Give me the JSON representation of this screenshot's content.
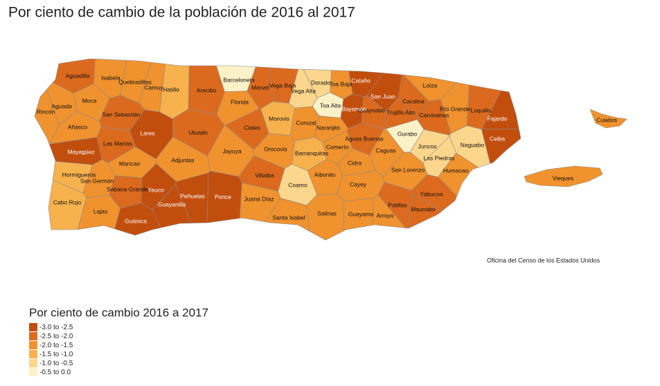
{
  "title": "Por ciento de cambio de la población de 2016 al 2017",
  "source": "Oficina del Censo de los Estados Unidos",
  "legend": {
    "title": "Por ciento de cambio 2016 a 2017",
    "items": [
      {
        "label": "-3.0 to -2.5",
        "color": "#c24e0e"
      },
      {
        "label": "-2.5 to -2.0",
        "color": "#dc6a1e"
      },
      {
        "label": "-2.0 to -1.5",
        "color": "#f0922e"
      },
      {
        "label": "-1.5 to -1.0",
        "color": "#f7b24e"
      },
      {
        "label": "-1.0 to -0.5",
        "color": "#fcd68c"
      },
      {
        "label": "-0.5 to 0.0",
        "color": "#fdf1c8"
      }
    ]
  },
  "municipalities": [
    {
      "name": "Aguadilla",
      "color": "#dc6a1e"
    },
    {
      "name": "Isabela",
      "color": "#f0922e"
    },
    {
      "name": "Quebradillas",
      "color": "#f0922e"
    },
    {
      "name": "Camuy",
      "color": "#f0922e"
    },
    {
      "name": "Hatillo",
      "color": "#f7b24e"
    },
    {
      "name": "Arecibo",
      "color": "#dc6a1e"
    },
    {
      "name": "Barceloneta",
      "color": "#fdf1c8"
    },
    {
      "name": "Manatí",
      "color": "#dc6a1e"
    },
    {
      "name": "Florida",
      "color": "#f0922e"
    },
    {
      "name": "Vega Baja",
      "color": "#dc6a1e"
    },
    {
      "name": "Vega Alta",
      "color": "#fcd68c"
    },
    {
      "name": "Dorado",
      "color": "#fcd68c"
    },
    {
      "name": "Toa Baja",
      "color": "#f0922e"
    },
    {
      "name": "Cataño",
      "color": "#c24e0e"
    },
    {
      "name": "San Juan",
      "color": "#c24e0e"
    },
    {
      "name": "Carolina",
      "color": "#dc6a1e"
    },
    {
      "name": "Loíza",
      "color": "#f0922e"
    },
    {
      "name": "Guaynabo",
      "color": "#dc6a1e"
    },
    {
      "name": "Bayamón",
      "color": "#c24e0e"
    },
    {
      "name": "Toa Alta",
      "color": "#fdf1c8"
    },
    {
      "name": "Trujillo Alto",
      "color": "#dc6a1e"
    },
    {
      "name": "Canóvanas",
      "color": "#dc6a1e"
    },
    {
      "name": "Río Grande",
      "color": "#f0922e"
    },
    {
      "name": "Luquillo",
      "color": "#dc6a1e"
    },
    {
      "name": "Fajardo",
      "color": "#c24e0e"
    },
    {
      "name": "Ceiba",
      "color": "#c24e0e"
    },
    {
      "name": "Culebra",
      "color": "#f0922e"
    },
    {
      "name": "Vieques",
      "color": "#f0922e"
    },
    {
      "name": "Rincón",
      "color": "#f0922e"
    },
    {
      "name": "Aguada",
      "color": "#f0922e"
    },
    {
      "name": "Moca",
      "color": "#f0922e"
    },
    {
      "name": "San Sebastián",
      "color": "#dc6a1e"
    },
    {
      "name": "Añasco",
      "color": "#f0922e"
    },
    {
      "name": "Lares",
      "color": "#c24e0e"
    },
    {
      "name": "Utuado",
      "color": "#dc6a1e"
    },
    {
      "name": "Ciales",
      "color": "#dc6a1e"
    },
    {
      "name": "Morovis",
      "color": "#f7b24e"
    },
    {
      "name": "Corozal",
      "color": "#f0922e"
    },
    {
      "name": "Naranjito",
      "color": "#f0922e"
    },
    {
      "name": "Mayagüez",
      "color": "#c24e0e"
    },
    {
      "name": "Las Marías",
      "color": "#dc6a1e"
    },
    {
      "name": "Maricao",
      "color": "#f0922e"
    },
    {
      "name": "Adjuntas",
      "color": "#f0922e"
    },
    {
      "name": "Jayuya",
      "color": "#f0922e"
    },
    {
      "name": "Orocovis",
      "color": "#f0922e"
    },
    {
      "name": "Barranquitas",
      "color": "#f7b24e"
    },
    {
      "name": "Comerío",
      "color": "#f0922e"
    },
    {
      "name": "Aguas Buenas",
      "color": "#dc6a1e"
    },
    {
      "name": "Caguas",
      "color": "#f0922e"
    },
    {
      "name": "Gurabo",
      "color": "#fdf1c8"
    },
    {
      "name": "Juncos",
      "color": "#fcd68c"
    },
    {
      "name": "Las Piedras",
      "color": "#fcd68c"
    },
    {
      "name": "Naguabo",
      "color": "#fcd68c"
    },
    {
      "name": "Humacao",
      "color": "#f0922e"
    },
    {
      "name": "San Lorenzo",
      "color": "#f0922e"
    },
    {
      "name": "Cidra",
      "color": "#f0922e"
    },
    {
      "name": "Cayey",
      "color": "#f0922e"
    },
    {
      "name": "Aibonito",
      "color": "#f0922e"
    },
    {
      "name": "Coamo",
      "color": "#fcd68c"
    },
    {
      "name": "Villalba",
      "color": "#dc6a1e"
    },
    {
      "name": "Hormigueros",
      "color": "#f7b24e"
    },
    {
      "name": "San Germán",
      "color": "#f0922e"
    },
    {
      "name": "Sabana Grande",
      "color": "#dc6a1e"
    },
    {
      "name": "Yauco",
      "color": "#c24e0e"
    },
    {
      "name": "Cabo Rojo",
      "color": "#f7b24e"
    },
    {
      "name": "Lajas",
      "color": "#f0922e"
    },
    {
      "name": "Guánica",
      "color": "#c24e0e"
    },
    {
      "name": "Guayanilla",
      "color": "#c24e0e"
    },
    {
      "name": "Peñuelas",
      "color": "#c24e0e"
    },
    {
      "name": "Ponce",
      "color": "#c24e0e"
    },
    {
      "name": "Juana Díaz",
      "color": "#f0922e"
    },
    {
      "name": "Santa Isabel",
      "color": "#f0922e"
    },
    {
      "name": "Salinas",
      "color": "#f0922e"
    },
    {
      "name": "Guayama",
      "color": "#f0922e"
    },
    {
      "name": "Arroyo",
      "color": "#f0922e"
    },
    {
      "name": "Patillas",
      "color": "#dc6a1e"
    },
    {
      "name": "Maunabo",
      "color": "#dc6a1e"
    },
    {
      "name": "Yabucoa",
      "color": "#dc6a1e"
    }
  ]
}
